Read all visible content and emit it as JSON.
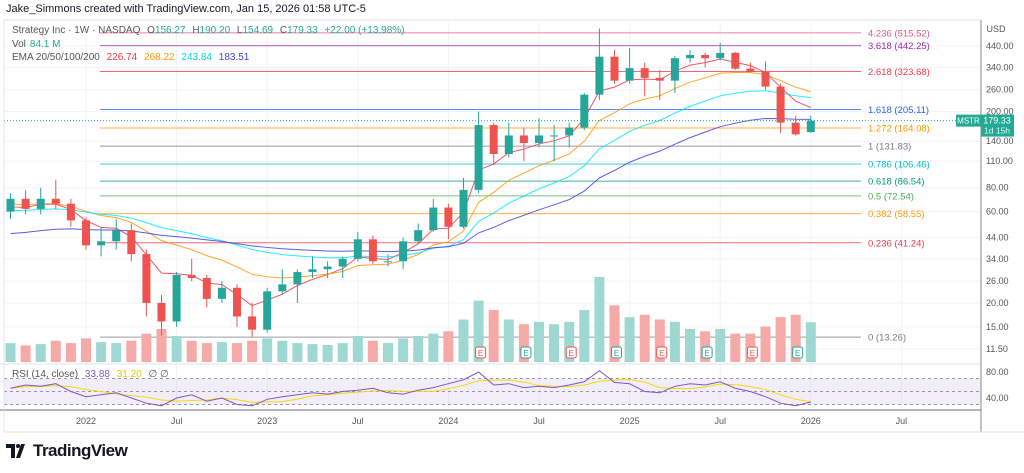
{
  "header": {
    "credit": "Jake_Simmons created with TradingView.com, Jan 15, 2026 01:58 UTC-5"
  },
  "legend": {
    "symbol": "Strategy Inc · 1W · NASDAQ",
    "o_label": "O",
    "o": "156.27",
    "h_label": "H",
    "h": "190.20",
    "l_label": "L",
    "l": "154.69",
    "c_label": "C",
    "c": "179.33",
    "change": "+22.00 (+13.98%)",
    "vol_label": "Vol",
    "vol": "84.1 M",
    "ema_label": "EMA 20/50/100/200",
    "ema20": "226.74",
    "ema50": "268.22",
    "ema100": "243.84",
    "ema200": "183.51",
    "rsi_label": "RSI (14, close)",
    "rsi": "33.88",
    "rsi_ma": "31.20",
    "rsi_extra": "∅ ∅"
  },
  "price_axis": {
    "currency": "USD",
    "ticks": [
      "440.00",
      "340.00",
      "260.00",
      "200.00",
      "140.00",
      "110.00",
      "80.00",
      "60.00",
      "44.00",
      "34.00",
      "26.00",
      "20.00",
      "15.00",
      "11.50"
    ],
    "scale": "log"
  },
  "rsi_axis": {
    "ticks": [
      "80.00",
      "40.00"
    ]
  },
  "time_axis": {
    "ticks": [
      "2022",
      "Jul",
      "2023",
      "Jul",
      "2024",
      "Jul",
      "2025",
      "Jul",
      "2026",
      "Jul"
    ]
  },
  "price_tag": {
    "symbol": "MSTR",
    "price": "179.33",
    "countdown": "1d 15h"
  },
  "fib_levels": [
    {
      "label": "4.236 (515.52)",
      "value": 515.52,
      "color": "#e0567a"
    },
    {
      "label": "3.618 (442.25)",
      "value": 442.25,
      "color": "#9c27b0"
    },
    {
      "label": "2.618 (323.68)",
      "value": 323.68,
      "color": "#f23645"
    },
    {
      "label": "1.618 (205.11)",
      "value": 205.11,
      "color": "#2962ff"
    },
    {
      "label": "1.272 (164.08)",
      "value": 164.08,
      "color": "#ff9800"
    },
    {
      "label": "1 (131.83)",
      "value": 131.83,
      "color": "#787b86"
    },
    {
      "label": "0.786 (106.46)",
      "value": 106.46,
      "color": "#00bcd4"
    },
    {
      "label": "0.618 (86.54)",
      "value": 86.54,
      "color": "#089981"
    },
    {
      "label": "0.5 (72.54)",
      "value": 72.54,
      "color": "#4caf50"
    },
    {
      "label": "0.382 (58.55)",
      "value": 58.55,
      "color": "#ff9800"
    },
    {
      "label": "0.236 (41.24)",
      "value": 41.24,
      "color": "#f23645"
    },
    {
      "label": "0 (13.26)",
      "value": 13.26,
      "color": "#787b86"
    }
  ],
  "earnings_marker": "E",
  "colors": {
    "up": "#26a69a",
    "down": "#ef5350",
    "ema20": "#f23645",
    "ema50": "#ff9800",
    "ema100": "#00e5ff",
    "ema200": "#3f3fe0",
    "rsi": "#7e57c2",
    "rsi_ma": "#f5d90a",
    "tag": "#22ab94"
  },
  "brand": "TradingView",
  "chart_data": {
    "type": "candlestick",
    "title": "Strategy Inc · 1W · NASDAQ",
    "ylabel": "USD",
    "y_scale": "log",
    "ylim": [
      10.5,
      560
    ],
    "x": [
      "2021-08",
      "2021-09",
      "2021-10",
      "2021-11",
      "2021-12",
      "2022-01",
      "2022-02",
      "2022-03",
      "2022-04",
      "2022-05",
      "2022-06",
      "2022-07",
      "2022-08",
      "2022-09",
      "2022-10",
      "2022-11",
      "2022-12",
      "2023-01",
      "2023-02",
      "2023-03",
      "2023-04",
      "2023-05",
      "2023-06",
      "2023-07",
      "2023-08",
      "2023-09",
      "2023-10",
      "2023-11",
      "2023-12",
      "2024-01",
      "2024-02",
      "2024-03",
      "2024-04",
      "2024-05",
      "2024-06",
      "2024-07",
      "2024-08",
      "2024-09",
      "2024-10",
      "2024-11",
      "2024-12",
      "2025-01",
      "2025-02",
      "2025-03",
      "2025-04",
      "2025-05",
      "2025-06",
      "2025-07",
      "2025-08",
      "2025-09",
      "2025-10",
      "2025-11",
      "2025-12",
      "2026-01"
    ],
    "ohlc": [
      [
        60,
        75,
        55,
        70
      ],
      [
        70,
        78,
        58,
        62
      ],
      [
        62,
        80,
        58,
        70
      ],
      [
        70,
        88,
        62,
        66
      ],
      [
        66,
        70,
        50,
        54
      ],
      [
        54,
        56,
        38,
        40
      ],
      [
        40,
        50,
        35,
        42
      ],
      [
        42,
        55,
        38,
        48
      ],
      [
        48,
        52,
        33,
        36
      ],
      [
        36,
        38,
        17,
        20
      ],
      [
        20,
        22,
        13.5,
        16
      ],
      [
        16,
        29,
        15,
        28
      ],
      [
        28,
        34,
        26,
        27
      ],
      [
        27,
        28,
        19,
        21
      ],
      [
        21,
        26,
        20,
        24
      ],
      [
        24,
        25,
        15,
        17
      ],
      [
        17,
        20,
        13.3,
        14.5
      ],
      [
        14.5,
        24,
        14,
        23
      ],
      [
        23,
        30,
        22,
        25
      ],
      [
        25,
        30,
        20,
        29
      ],
      [
        29,
        35,
        27,
        30
      ],
      [
        30,
        33,
        27,
        31
      ],
      [
        31,
        35,
        27,
        34
      ],
      [
        34,
        47,
        33,
        43
      ],
      [
        43,
        45,
        32,
        33
      ],
      [
        33,
        36,
        31,
        33
      ],
      [
        33,
        44,
        30,
        42
      ],
      [
        42,
        52,
        41,
        48
      ],
      [
        48,
        70,
        47,
        63
      ],
      [
        63,
        66,
        43,
        50
      ],
      [
        50,
        90,
        49,
        78
      ],
      [
        78,
        200,
        75,
        170
      ],
      [
        170,
        175,
        105,
        120
      ],
      [
        120,
        175,
        115,
        150
      ],
      [
        150,
        165,
        110,
        137
      ],
      [
        137,
        185,
        130,
        150
      ],
      [
        150,
        170,
        110,
        150
      ],
      [
        150,
        175,
        130,
        165
      ],
      [
        165,
        250,
        160,
        245
      ],
      [
        245,
        543,
        230,
        387
      ],
      [
        387,
        420,
        280,
        290
      ],
      [
        290,
        430,
        280,
        337
      ],
      [
        337,
        360,
        240,
        300
      ],
      [
        300,
        330,
        230,
        290
      ],
      [
        290,
        390,
        250,
        380
      ],
      [
        380,
        420,
        360,
        395
      ],
      [
        395,
        405,
        340,
        380
      ],
      [
        380,
        457,
        370,
        405
      ],
      [
        405,
        410,
        330,
        335
      ],
      [
        335,
        360,
        320,
        322
      ],
      [
        322,
        365,
        260,
        270
      ],
      [
        270,
        280,
        155,
        175
      ],
      [
        175,
        190,
        150,
        152
      ],
      [
        156.27,
        190.2,
        154.69,
        179.33
      ]
    ],
    "volume_m": [
      40,
      35,
      38,
      45,
      40,
      50,
      42,
      40,
      45,
      60,
      70,
      55,
      45,
      40,
      42,
      40,
      45,
      50,
      45,
      40,
      38,
      36,
      40,
      55,
      45,
      40,
      50,
      55,
      60,
      65,
      90,
      130,
      110,
      90,
      80,
      85,
      80,
      85,
      110,
      180,
      120,
      95,
      100,
      90,
      85,
      70,
      65,
      70,
      60,
      60,
      75,
      95,
      100,
      84.1
    ],
    "rsi": [
      55,
      60,
      58,
      62,
      50,
      42,
      45,
      48,
      40,
      32,
      28,
      40,
      45,
      35,
      40,
      30,
      28,
      38,
      42,
      45,
      48,
      46,
      50,
      52,
      55,
      48,
      46,
      52,
      56,
      62,
      68,
      80,
      60,
      62,
      56,
      58,
      56,
      60,
      65,
      82,
      64,
      62,
      50,
      48,
      58,
      62,
      60,
      65,
      55,
      50,
      42,
      32,
      28,
      33.88
    ],
    "rsi_levels": [
      70,
      50,
      30
    ]
  }
}
